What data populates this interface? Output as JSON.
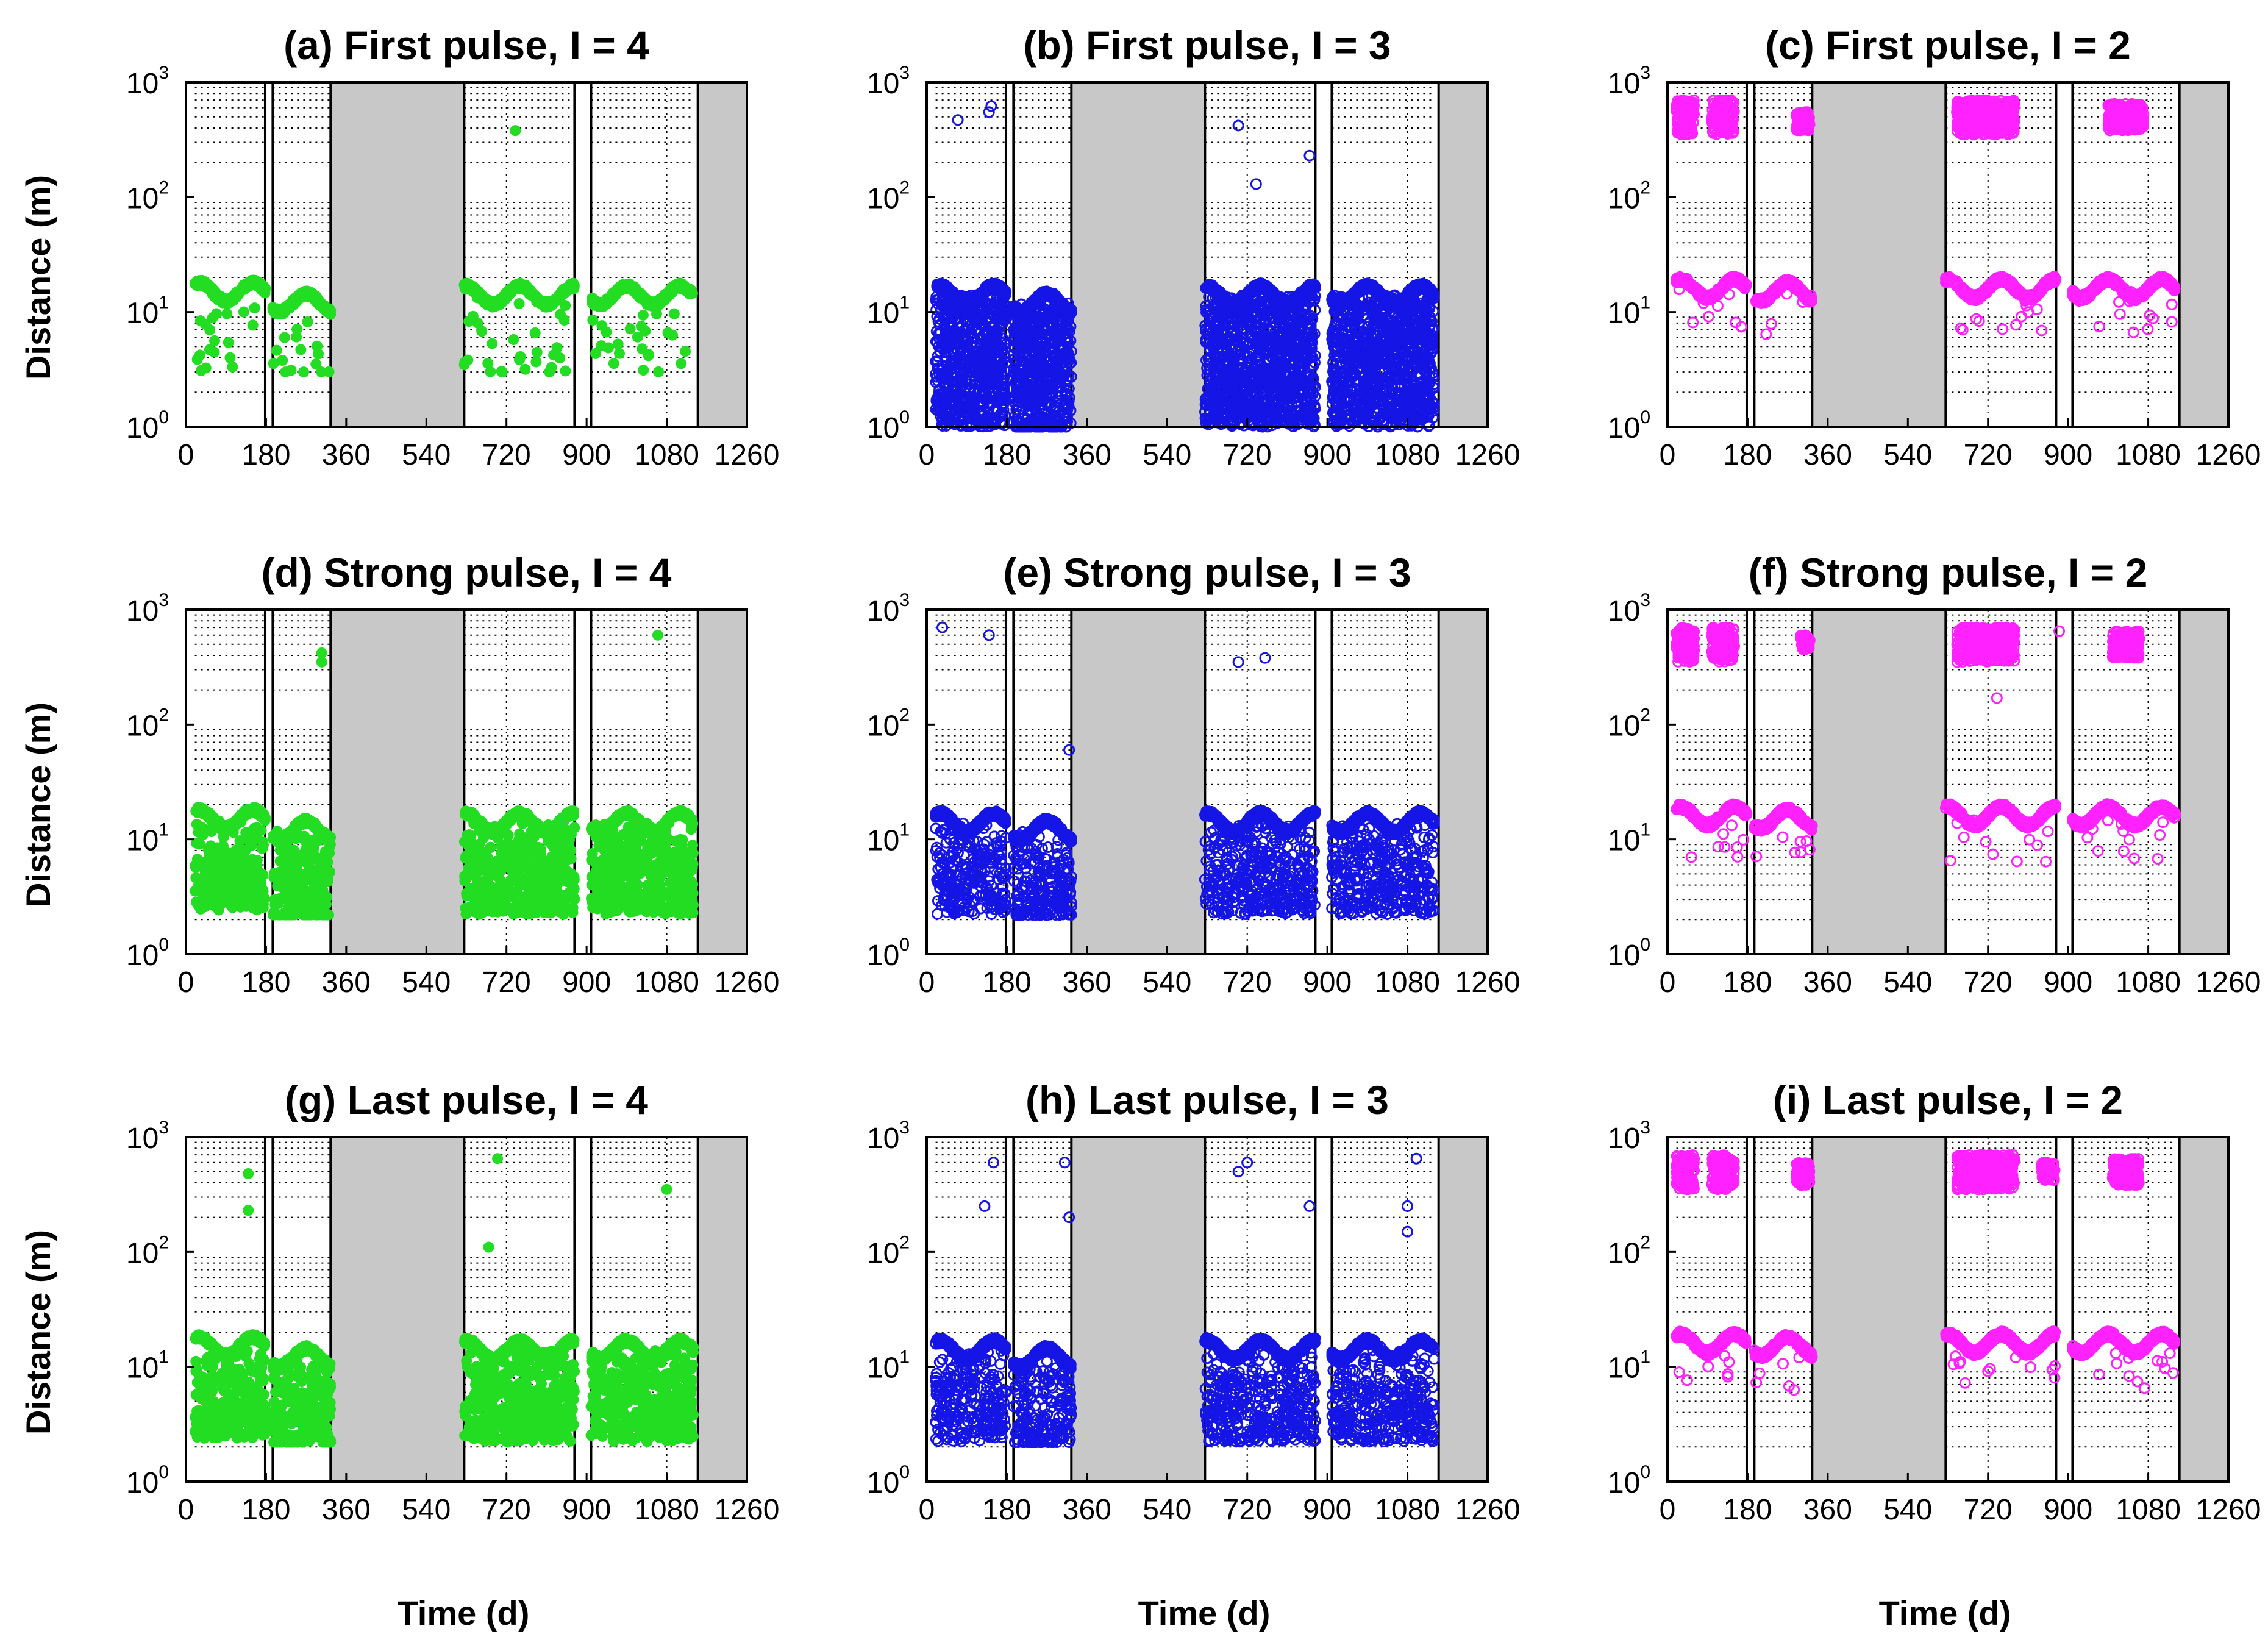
{
  "figure": {
    "xlabel": "Time (d)",
    "ylabel": "Distance (m)"
  },
  "colors": {
    "green": "#22dd22",
    "blue": "#1515e6",
    "magenta": "#ff22ff",
    "gap": "#c8c8c8",
    "grid": "#000000"
  },
  "chart_data": [
    {
      "id": "a",
      "type": "scatter",
      "title": "(a) First pulse, I = 4",
      "color": "green",
      "marker": "filled",
      "density": "sparse",
      "xlim": [
        0,
        1260
      ],
      "ylim": [
        1,
        1000
      ],
      "yscale": "log",
      "xticks": [
        0,
        180,
        360,
        540,
        720,
        900,
        1080,
        1260
      ],
      "yticks": [
        {
          "base": "10",
          "exp": "0",
          "value": 1
        },
        {
          "base": "10",
          "exp": "1",
          "value": 10
        },
        {
          "base": "10",
          "exp": "2",
          "value": 100
        },
        {
          "base": "10",
          "exp": "3",
          "value": 1000
        }
      ],
      "campaigns": [
        [
          20,
          178
        ],
        [
          195,
          325
        ],
        [
          625,
          873
        ],
        [
          910,
          1140
        ]
      ],
      "gaps": [
        [
          325,
          625
        ],
        [
          1150,
          1260
        ]
      ],
      "bands": [
        {
          "from": 20,
          "to": 178,
          "y": 15
        },
        {
          "from": 195,
          "to": 325,
          "y": 12
        },
        {
          "from": 625,
          "to": 873,
          "y": 14
        },
        {
          "from": 910,
          "to": 1140,
          "y": 14
        }
      ],
      "outliers": [
        [
          740,
          380
        ]
      ]
    },
    {
      "id": "b",
      "type": "scatter",
      "title": "(b) First pulse, I = 3",
      "color": "blue",
      "marker": "open",
      "density": "dense",
      "xlim": [
        0,
        1260
      ],
      "ylim": [
        1,
        1000
      ],
      "yscale": "log",
      "xticks": [
        0,
        180,
        360,
        540,
        720,
        900,
        1080,
        1260
      ],
      "yticks": [
        {
          "base": "10",
          "exp": "0",
          "value": 1
        },
        {
          "base": "10",
          "exp": "1",
          "value": 10
        },
        {
          "base": "10",
          "exp": "2",
          "value": 100
        },
        {
          "base": "10",
          "exp": "3",
          "value": 1000
        }
      ],
      "campaigns": [
        [
          20,
          178
        ],
        [
          195,
          325
        ],
        [
          625,
          873
        ],
        [
          910,
          1140
        ]
      ],
      "gaps": [
        [
          325,
          625
        ],
        [
          1150,
          1260
        ]
      ],
      "bands": [
        {
          "from": 20,
          "to": 178,
          "y": 14
        },
        {
          "from": 195,
          "to": 325,
          "y": 12
        },
        {
          "from": 625,
          "to": 873,
          "y": 14
        },
        {
          "from": 910,
          "to": 1140,
          "y": 14
        }
      ],
      "outliers": [
        [
          70,
          470
        ],
        [
          145,
          620
        ],
        [
          140,
          550
        ],
        [
          700,
          420
        ],
        [
          740,
          130
        ],
        [
          860,
          230
        ]
      ]
    },
    {
      "id": "c",
      "type": "scatter",
      "title": "(c) First pulse, I = 2",
      "color": "magenta",
      "marker": "open",
      "density": "band",
      "xlim": [
        0,
        1260
      ],
      "ylim": [
        1,
        1000
      ],
      "yscale": "log",
      "xticks": [
        0,
        180,
        360,
        540,
        720,
        900,
        1080,
        1260
      ],
      "yticks": [
        {
          "base": "10",
          "exp": "0",
          "value": 1
        },
        {
          "base": "10",
          "exp": "1",
          "value": 10
        },
        {
          "base": "10",
          "exp": "2",
          "value": 100
        },
        {
          "base": "10",
          "exp": "3",
          "value": 1000
        }
      ],
      "campaigns": [
        [
          20,
          178
        ],
        [
          195,
          325
        ],
        [
          625,
          873
        ],
        [
          910,
          1140
        ]
      ],
      "gaps": [
        [
          325,
          625
        ],
        [
          1150,
          1260
        ]
      ],
      "bands": [
        {
          "from": 20,
          "to": 178,
          "y": 16
        },
        {
          "from": 195,
          "to": 325,
          "y": 15
        },
        {
          "from": 625,
          "to": 873,
          "y": 16
        },
        {
          "from": 910,
          "to": 1140,
          "y": 16
        }
      ],
      "clusters": [
        [
          20,
          60,
          350,
          700
        ],
        [
          100,
          150,
          350,
          700
        ],
        [
          290,
          320,
          380,
          550
        ],
        [
          650,
          780,
          350,
          700
        ],
        [
          990,
          1070,
          380,
          650
        ]
      ],
      "outliers": []
    },
    {
      "id": "d",
      "type": "scatter",
      "title": "(d) Strong pulse, I = 4",
      "color": "green",
      "marker": "filled",
      "density": "medium",
      "xlim": [
        0,
        1260
      ],
      "ylim": [
        1,
        1000
      ],
      "yscale": "log",
      "xticks": [
        0,
        180,
        360,
        540,
        720,
        900,
        1080,
        1260
      ],
      "yticks": [
        {
          "base": "10",
          "exp": "0",
          "value": 1
        },
        {
          "base": "10",
          "exp": "1",
          "value": 10
        },
        {
          "base": "10",
          "exp": "2",
          "value": 100
        },
        {
          "base": "10",
          "exp": "3",
          "value": 1000
        }
      ],
      "campaigns": [
        [
          20,
          178
        ],
        [
          195,
          325
        ],
        [
          625,
          873
        ],
        [
          910,
          1140
        ]
      ],
      "gaps": [
        [
          325,
          625
        ],
        [
          1150,
          1260
        ]
      ],
      "bands": [
        {
          "from": 20,
          "to": 178,
          "y": 15
        },
        {
          "from": 195,
          "to": 325,
          "y": 12
        },
        {
          "from": 625,
          "to": 873,
          "y": 14
        },
        {
          "from": 910,
          "to": 1140,
          "y": 14
        }
      ],
      "outliers": [
        [
          305,
          420
        ],
        [
          305,
          350
        ],
        [
          1060,
          600
        ]
      ]
    },
    {
      "id": "e",
      "type": "scatter",
      "title": "(e) Strong pulse, I = 3",
      "color": "blue",
      "marker": "open",
      "density": "medium",
      "xlim": [
        0,
        1260
      ],
      "ylim": [
        1,
        1000
      ],
      "yscale": "log",
      "xticks": [
        0,
        180,
        360,
        540,
        720,
        900,
        1080,
        1260
      ],
      "yticks": [
        {
          "base": "10",
          "exp": "0",
          "value": 1
        },
        {
          "base": "10",
          "exp": "1",
          "value": 10
        },
        {
          "base": "10",
          "exp": "2",
          "value": 100
        },
        {
          "base": "10",
          "exp": "3",
          "value": 1000
        }
      ],
      "campaigns": [
        [
          20,
          178
        ],
        [
          195,
          325
        ],
        [
          625,
          873
        ],
        [
          910,
          1140
        ]
      ],
      "gaps": [
        [
          325,
          625
        ],
        [
          1150,
          1260
        ]
      ],
      "bands": [
        {
          "from": 20,
          "to": 178,
          "y": 14
        },
        {
          "from": 195,
          "to": 325,
          "y": 12
        },
        {
          "from": 625,
          "to": 873,
          "y": 14
        },
        {
          "from": 910,
          "to": 1140,
          "y": 14
        }
      ],
      "outliers": [
        [
          35,
          700
        ],
        [
          140,
          600
        ],
        [
          320,
          60
        ],
        [
          700,
          350
        ],
        [
          760,
          380
        ]
      ]
    },
    {
      "id": "f",
      "type": "scatter",
      "title": "(f) Strong pulse, I = 2",
      "color": "magenta",
      "marker": "open",
      "density": "band",
      "xlim": [
        0,
        1260
      ],
      "ylim": [
        1,
        1000
      ],
      "yscale": "log",
      "xticks": [
        0,
        180,
        360,
        540,
        720,
        900,
        1080,
        1260
      ],
      "yticks": [
        {
          "base": "10",
          "exp": "0",
          "value": 1
        },
        {
          "base": "10",
          "exp": "1",
          "value": 10
        },
        {
          "base": "10",
          "exp": "2",
          "value": 100
        },
        {
          "base": "10",
          "exp": "3",
          "value": 1000
        }
      ],
      "campaigns": [
        [
          20,
          178
        ],
        [
          195,
          325
        ],
        [
          625,
          873
        ],
        [
          910,
          1140
        ]
      ],
      "gaps": [
        [
          325,
          625
        ],
        [
          1150,
          1260
        ]
      ],
      "bands": [
        {
          "from": 20,
          "to": 178,
          "y": 16
        },
        {
          "from": 195,
          "to": 325,
          "y": 15
        },
        {
          "from": 625,
          "to": 873,
          "y": 16
        },
        {
          "from": 910,
          "to": 1140,
          "y": 16
        }
      ],
      "clusters": [
        [
          20,
          60,
          350,
          700
        ],
        [
          100,
          150,
          350,
          700
        ],
        [
          300,
          320,
          450,
          600
        ],
        [
          650,
          780,
          350,
          700
        ],
        [
          1000,
          1060,
          380,
          650
        ]
      ],
      "outliers": [
        [
          740,
          170
        ],
        [
          880,
          650
        ]
      ]
    },
    {
      "id": "g",
      "type": "scatter",
      "title": "(g) Last pulse, I = 4",
      "color": "green",
      "marker": "filled",
      "density": "medium",
      "xlim": [
        0,
        1260
      ],
      "ylim": [
        1,
        1000
      ],
      "yscale": "log",
      "xticks": [
        0,
        180,
        360,
        540,
        720,
        900,
        1080,
        1260
      ],
      "yticks": [
        {
          "base": "10",
          "exp": "0",
          "value": 1
        },
        {
          "base": "10",
          "exp": "1",
          "value": 10
        },
        {
          "base": "10",
          "exp": "2",
          "value": 100
        },
        {
          "base": "10",
          "exp": "3",
          "value": 1000
        }
      ],
      "campaigns": [
        [
          20,
          178
        ],
        [
          195,
          325
        ],
        [
          625,
          873
        ],
        [
          910,
          1140
        ]
      ],
      "gaps": [
        [
          325,
          625
        ],
        [
          1150,
          1260
        ]
      ],
      "bands": [
        {
          "from": 20,
          "to": 178,
          "y": 15
        },
        {
          "from": 195,
          "to": 325,
          "y": 12
        },
        {
          "from": 625,
          "to": 873,
          "y": 14
        },
        {
          "from": 910,
          "to": 1140,
          "y": 14
        }
      ],
      "outliers": [
        [
          140,
          480
        ],
        [
          140,
          230
        ],
        [
          700,
          650
        ],
        [
          680,
          110
        ],
        [
          1080,
          350
        ]
      ]
    },
    {
      "id": "h",
      "type": "scatter",
      "title": "(h) Last pulse, I = 3",
      "color": "blue",
      "marker": "open",
      "density": "medium",
      "xlim": [
        0,
        1260
      ],
      "ylim": [
        1,
        1000
      ],
      "yscale": "log",
      "xticks": [
        0,
        180,
        360,
        540,
        720,
        900,
        1080,
        1260
      ],
      "yticks": [
        {
          "base": "10",
          "exp": "0",
          "value": 1
        },
        {
          "base": "10",
          "exp": "1",
          "value": 10
        },
        {
          "base": "10",
          "exp": "2",
          "value": 100
        },
        {
          "base": "10",
          "exp": "3",
          "value": 1000
        }
      ],
      "campaigns": [
        [
          20,
          178
        ],
        [
          195,
          325
        ],
        [
          625,
          873
        ],
        [
          910,
          1140
        ]
      ],
      "gaps": [
        [
          325,
          625
        ],
        [
          1150,
          1260
        ]
      ],
      "bands": [
        {
          "from": 20,
          "to": 178,
          "y": 14
        },
        {
          "from": 195,
          "to": 325,
          "y": 12
        },
        {
          "from": 625,
          "to": 873,
          "y": 14
        },
        {
          "from": 910,
          "to": 1140,
          "y": 14
        }
      ],
      "outliers": [
        [
          150,
          600
        ],
        [
          130,
          250
        ],
        [
          310,
          600
        ],
        [
          320,
          200
        ],
        [
          700,
          500
        ],
        [
          720,
          600
        ],
        [
          860,
          250
        ],
        [
          1080,
          250
        ],
        [
          1100,
          650
        ],
        [
          1080,
          150
        ]
      ]
    },
    {
      "id": "i",
      "type": "scatter",
      "title": "(i) Last pulse, I = 2",
      "color": "magenta",
      "marker": "open",
      "density": "band",
      "xlim": [
        0,
        1260
      ],
      "ylim": [
        1,
        1000
      ],
      "yscale": "log",
      "xticks": [
        0,
        180,
        360,
        540,
        720,
        900,
        1080,
        1260
      ],
      "yticks": [
        {
          "base": "10",
          "exp": "0",
          "value": 1
        },
        {
          "base": "10",
          "exp": "1",
          "value": 10
        },
        {
          "base": "10",
          "exp": "2",
          "value": 100
        },
        {
          "base": "10",
          "exp": "3",
          "value": 1000
        }
      ],
      "campaigns": [
        [
          20,
          178
        ],
        [
          195,
          325
        ],
        [
          625,
          873
        ],
        [
          910,
          1140
        ]
      ],
      "gaps": [
        [
          325,
          625
        ],
        [
          1150,
          1260
        ]
      ],
      "bands": [
        {
          "from": 20,
          "to": 178,
          "y": 16
        },
        {
          "from": 195,
          "to": 325,
          "y": 15
        },
        {
          "from": 625,
          "to": 873,
          "y": 16
        },
        {
          "from": 910,
          "to": 1140,
          "y": 16
        }
      ],
      "clusters": [
        [
          20,
          60,
          350,
          700
        ],
        [
          100,
          150,
          350,
          700
        ],
        [
          290,
          320,
          380,
          600
        ],
        [
          650,
          780,
          350,
          700
        ],
        [
          840,
          870,
          420,
          600
        ],
        [
          1000,
          1060,
          380,
          650
        ]
      ],
      "outliers": []
    }
  ]
}
